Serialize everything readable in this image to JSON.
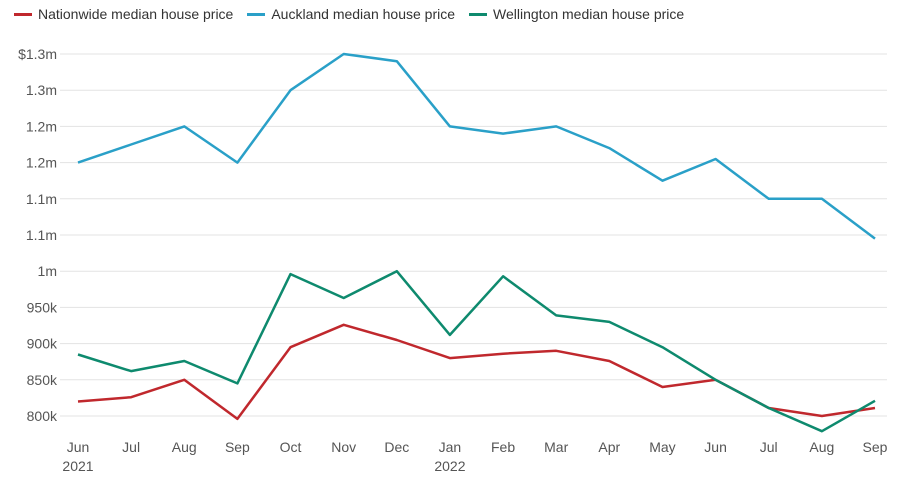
{
  "chart_data": {
    "type": "line",
    "title": "",
    "xlabel": "",
    "ylabel": "",
    "categories": [
      "Jun",
      "Jul",
      "Aug",
      "Sep",
      "Oct",
      "Nov",
      "Dec",
      "Jan",
      "Feb",
      "Mar",
      "Apr",
      "May",
      "Jun",
      "Jul",
      "Aug",
      "Sep"
    ],
    "year_labels": [
      {
        "index": 0,
        "label": "2021"
      },
      {
        "index": 7,
        "label": "2022"
      }
    ],
    "ylim": [
      800,
      1300
    ],
    "y_unit": "thousands NZD",
    "y_ticks": [
      {
        "value": 800,
        "label": "800k"
      },
      {
        "value": 850,
        "label": "850k"
      },
      {
        "value": 900,
        "label": "900k"
      },
      {
        "value": 950,
        "label": "950k"
      },
      {
        "value": 1000,
        "label": "1m"
      },
      {
        "value": 1050,
        "label": "1.1m"
      },
      {
        "value": 1100,
        "label": "1.1m"
      },
      {
        "value": 1150,
        "label": "1.2m"
      },
      {
        "value": 1200,
        "label": "1.2m"
      },
      {
        "value": 1250,
        "label": "1.3m"
      },
      {
        "value": 1300,
        "label": "$1.3m"
      }
    ],
    "grid": true,
    "legend_position": "top-left",
    "series": [
      {
        "name": "Nationwide median house price",
        "color": "#c0282d",
        "values": [
          820,
          826,
          850,
          796,
          895,
          926,
          905,
          880,
          886,
          890,
          876,
          840,
          850,
          811,
          800,
          811
        ]
      },
      {
        "name": "Auckland median house price",
        "color": "#2aa0c8",
        "values": [
          1150,
          1175,
          1200,
          1150,
          1250,
          1300,
          1290,
          1200,
          1190,
          1200,
          1170,
          1125,
          1155,
          1100,
          1100,
          1045
        ]
      },
      {
        "name": "Wellington median house price",
        "color": "#0e8a6e",
        "values": [
          885,
          862,
          876,
          845,
          996,
          963,
          1000,
          912,
          993,
          939,
          930,
          895,
          850,
          811,
          779,
          821
        ]
      }
    ]
  }
}
